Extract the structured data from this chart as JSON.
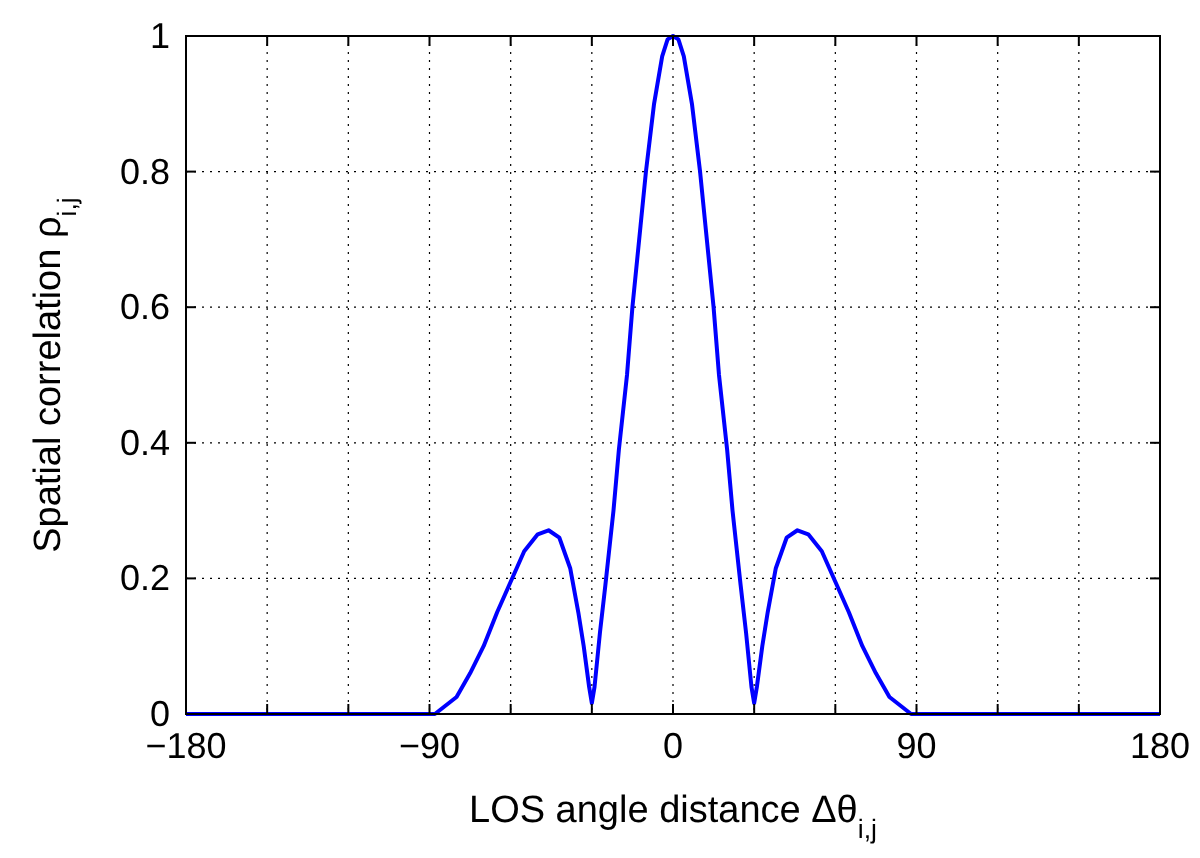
{
  "chart_data": {
    "type": "line",
    "xlabel": "LOS angle distance Δθ$_{i,j}$",
    "ylabel": "Spatial correlation ρ$_{i,j}$",
    "x": [
      -180,
      -120,
      -90,
      -88,
      -80,
      -75,
      -70,
      -65,
      -60,
      -55,
      -50,
      -46,
      -42,
      -38,
      -35,
      -33,
      -31,
      -30,
      -29,
      -27,
      -25,
      -22,
      -20,
      -17,
      -15,
      -12,
      -10,
      -7,
      -4,
      -2,
      0,
      2,
      4,
      7,
      10,
      12,
      15,
      17,
      20,
      22,
      25,
      27,
      29,
      30,
      31,
      33,
      35,
      38,
      42,
      46,
      50,
      55,
      60,
      65,
      70,
      75,
      80,
      88,
      90,
      120,
      180
    ],
    "series": [
      {
        "color": "#0000ff",
        "values": [
          0,
          0,
          0,
          0,
          0.025,
          0.06,
          0.1,
          0.15,
          0.195,
          0.24,
          0.265,
          0.271,
          0.26,
          0.215,
          0.15,
          0.1,
          0.04,
          0.016,
          0.04,
          0.12,
          0.19,
          0.3,
          0.39,
          0.5,
          0.6,
          0.72,
          0.8,
          0.9,
          0.97,
          0.995,
          1,
          0.995,
          0.97,
          0.9,
          0.8,
          0.72,
          0.6,
          0.5,
          0.39,
          0.3,
          0.19,
          0.12,
          0.04,
          0.016,
          0.04,
          0.1,
          0.15,
          0.215,
          0.26,
          0.271,
          0.265,
          0.24,
          0.195,
          0.15,
          0.1,
          0.06,
          0.025,
          0,
          0,
          0,
          0
        ]
      }
    ],
    "xlim": [
      -180,
      180
    ],
    "ylim": [
      0,
      1
    ],
    "xticks": [
      {
        "value": -180,
        "label": "−180"
      },
      {
        "value": -150,
        "label": null
      },
      {
        "value": -120,
        "label": null
      },
      {
        "value": -90,
        "label": "−90"
      },
      {
        "value": -60,
        "label": null
      },
      {
        "value": -30,
        "label": null
      },
      0,
      {
        "value": 30,
        "label": null
      },
      {
        "value": 60,
        "label": null
      },
      90,
      {
        "value": 120,
        "label": null
      },
      {
        "value": 150,
        "label": null
      },
      180
    ],
    "yticks": [
      0,
      0.2,
      0.4,
      0.6,
      0.8,
      1
    ],
    "grid": true,
    "marker": "none",
    "line_style": "solid"
  }
}
